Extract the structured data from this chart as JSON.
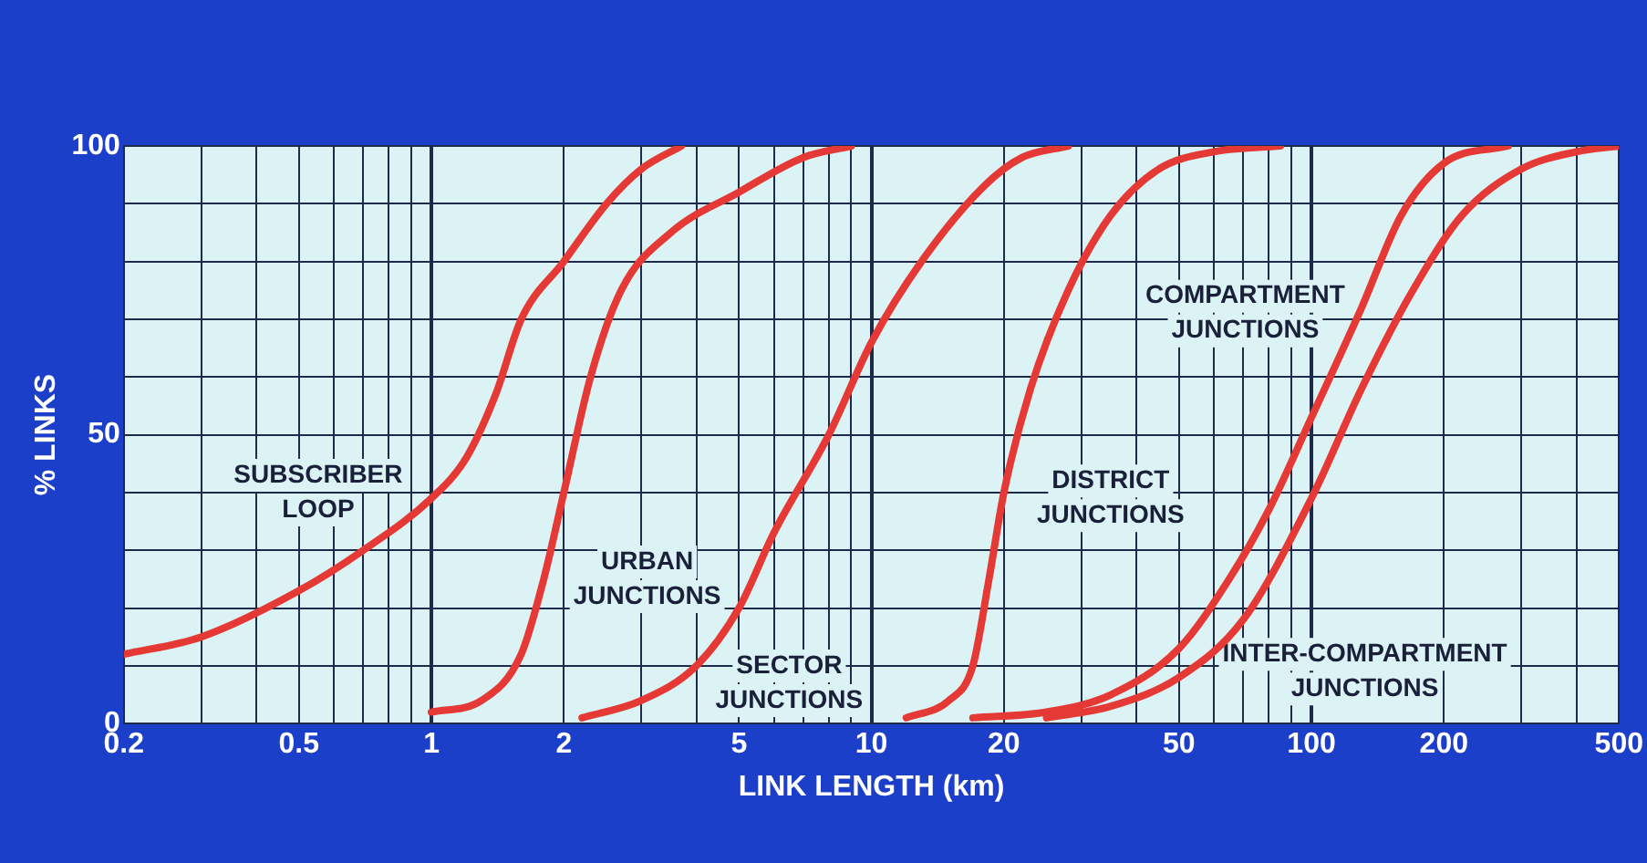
{
  "chart_data": {
    "type": "line",
    "xlabel": "LINK LENGTH (km)",
    "ylabel": "% LINKS",
    "log": "x",
    "grid": true,
    "legend": false,
    "marker": "none",
    "line_style": "solid",
    "xlim": [
      0.2,
      500
    ],
    "xticks": [
      0.2,
      {
        "value": 0.3,
        "label": null
      },
      {
        "value": 0.4,
        "label": null
      },
      0.5,
      {
        "value": 0.6,
        "label": null
      },
      {
        "value": 0.7,
        "label": null
      },
      {
        "value": 0.8,
        "label": null
      },
      {
        "value": 0.9,
        "label": null
      },
      1,
      2,
      {
        "value": 3,
        "label": null
      },
      {
        "value": 4,
        "label": null
      },
      5,
      {
        "value": 6,
        "label": null
      },
      {
        "value": 7,
        "label": null
      },
      {
        "value": 8,
        "label": null
      },
      {
        "value": 9,
        "label": null
      },
      10,
      20,
      {
        "value": 30,
        "label": null
      },
      {
        "value": 40,
        "label": null
      },
      50,
      {
        "value": 60,
        "label": null
      },
      {
        "value": 70,
        "label": null
      },
      {
        "value": 80,
        "label": null
      },
      {
        "value": 90,
        "label": null
      },
      100,
      200,
      {
        "value": 300,
        "label": null
      },
      {
        "value": 400,
        "label": null
      },
      500
    ],
    "ylim": [
      0,
      100
    ],
    "yticks": [
      0,
      {
        "value": 10,
        "label": null
      },
      {
        "value": 20,
        "label": null
      },
      {
        "value": 30,
        "label": null
      },
      {
        "value": 40,
        "label": null
      },
      50,
      {
        "value": 60,
        "label": null
      },
      {
        "value": 70,
        "label": null
      },
      {
        "value": 80,
        "label": null
      },
      {
        "value": 90,
        "label": null
      },
      100
    ],
    "series": [
      {
        "name": "SUBSCRIBER LOOP",
        "color": "#e53935",
        "x": [
          0.2,
          0.3,
          0.5,
          0.7,
          1,
          1.2,
          1.4,
          1.6,
          2,
          2.5,
          3,
          3.7
        ],
        "values": [
          12,
          15,
          23,
          30,
          39,
          46,
          57,
          70,
          80,
          90,
          96,
          100
        ]
      },
      {
        "name": "URBAN JUNCTIONS",
        "color": "#e53935",
        "x": [
          1,
          1.3,
          1.6,
          1.8,
          2,
          2.3,
          2.7,
          3.5,
          5,
          7,
          9
        ],
        "values": [
          2,
          4,
          12,
          25,
          40,
          60,
          75,
          85,
          92,
          98,
          100
        ]
      },
      {
        "name": "SECTOR JUNCTIONS",
        "color": "#e53935",
        "x": [
          2.2,
          3,
          4,
          5,
          6,
          8,
          10,
          13,
          18,
          22,
          28
        ],
        "values": [
          1,
          4,
          10,
          20,
          33,
          50,
          66,
          80,
          93,
          98,
          100
        ]
      },
      {
        "name": "DISTRICT JUNCTIONS",
        "color": "#e53935",
        "x": [
          12,
          15,
          17,
          18.5,
          20,
          23,
          28,
          35,
          45,
          60,
          85
        ],
        "values": [
          1,
          4,
          10,
          25,
          40,
          58,
          75,
          88,
          96,
          99,
          100
        ]
      },
      {
        "name": "COMPARTMENT JUNCTIONS",
        "color": "#e53935",
        "x": [
          17,
          25,
          35,
          50,
          65,
          80,
          100,
          130,
          160,
          200,
          280
        ],
        "values": [
          1,
          2,
          5,
          13,
          25,
          37,
          53,
          72,
          88,
          97,
          100
        ]
      },
      {
        "name": "INTER-COMPARTMENT JUNCTIONS",
        "color": "#e53935",
        "x": [
          25,
          35,
          50,
          70,
          100,
          130,
          170,
          220,
          300,
          400,
          500
        ],
        "values": [
          1,
          3,
          8,
          18,
          39,
          58,
          75,
          88,
          96,
          99,
          100
        ]
      }
    ]
  }
}
